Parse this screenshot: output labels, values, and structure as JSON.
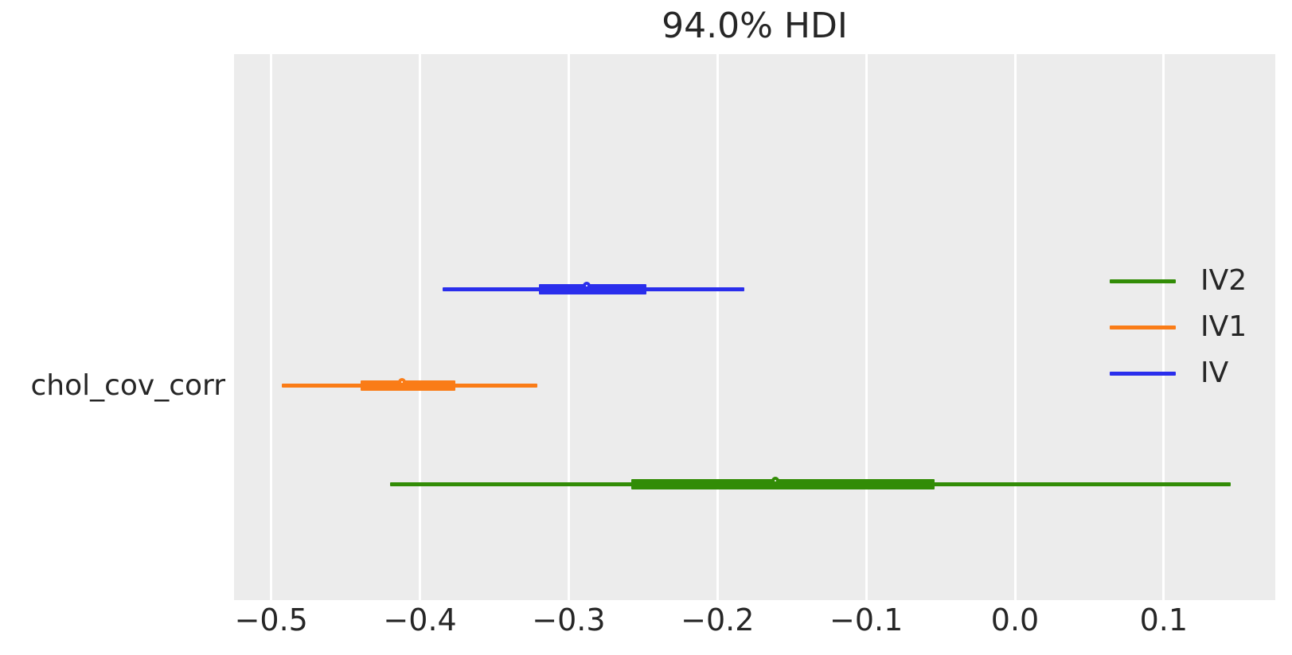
{
  "chart_data": {
    "type": "forest_plot",
    "title": "94.0% HDI",
    "y_label": "chol_cov_corr",
    "hdi_probability": "94.0%",
    "xlim": [
      -0.525,
      0.175
    ],
    "x_ticks": [
      -0.5,
      -0.4,
      -0.3,
      -0.2,
      -0.1,
      0.0,
      0.1
    ],
    "x_tick_labels": [
      "−0.5",
      "−0.4",
      "−0.3",
      "−0.2",
      "−0.1",
      "0.0",
      "0.1"
    ],
    "plot_background_color": "#ececec",
    "gridline_color": "#ffffff",
    "text_color": "#262626",
    "legend": [
      {
        "label": "IV2",
        "color": "#328c06"
      },
      {
        "label": "IV1",
        "color": "#fa7c17"
      },
      {
        "label": "IV",
        "color": "#2a2eec"
      }
    ],
    "series": [
      {
        "name": "IV",
        "color": "#2a2eec",
        "row": 0,
        "hdi": [
          -0.385,
          -0.182
        ],
        "quartile": [
          -0.32,
          -0.248
        ],
        "median": -0.286
      },
      {
        "name": "IV1",
        "color": "#fa7c17",
        "row": 1,
        "hdi": [
          -0.493,
          -0.321
        ],
        "quartile": [
          -0.44,
          -0.376
        ],
        "median": -0.41
      },
      {
        "name": "IV2",
        "color": "#328c06",
        "row": 2,
        "hdi": [
          -0.42,
          0.145
        ],
        "quartile": [
          -0.258,
          -0.054
        ],
        "median": -0.159
      }
    ]
  }
}
